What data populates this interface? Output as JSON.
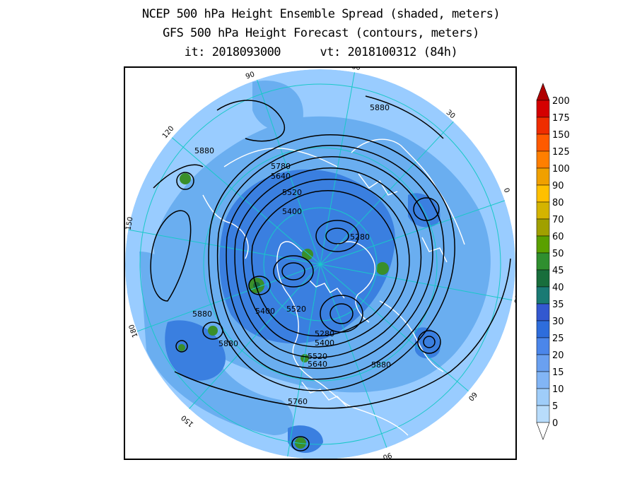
{
  "title": {
    "line1": "NCEP 500 hPa Height Ensemble Spread (shaded, meters)",
    "line2": "GFS 500 hPa Height Forecast (contours, meters)",
    "init_time": "it: 2018093000",
    "valid_time": "vt: 2018100312 (84h)"
  },
  "map": {
    "projection": "north polar stereographic",
    "longitude_labels": [
      "60",
      "30",
      "0",
      "30",
      "60",
      "90",
      "120",
      "150",
      "180",
      "150",
      "120",
      "90"
    ],
    "contour_labels": [
      "5880",
      "5880",
      "5780",
      "5640",
      "5520",
      "5400",
      "5280",
      "5400",
      "5520",
      "5880",
      "5880",
      "5280",
      "5400",
      "5520",
      "5640",
      "5880",
      "5760"
    ],
    "colors": {
      "ocean_shade": "#99ccff",
      "spread_low": "#6aaef0",
      "spread_mid": "#3a7fe0",
      "spread_high": "#2f6fd0",
      "contour": "#000000",
      "coastline": "#ffffff",
      "gridline": "#19c8c8",
      "hotspot_green": "#3a8f2a",
      "hotspot_dark": "#1a6a3a"
    }
  },
  "colorbar": {
    "levels": [
      "200",
      "175",
      "150",
      "125",
      "100",
      "90",
      "80",
      "70",
      "60",
      "50",
      "45",
      "40",
      "35",
      "30",
      "25",
      "20",
      "15",
      "10",
      "5",
      "0"
    ],
    "colors": [
      "#b00000",
      "#d40000",
      "#ef2d00",
      "#ff5a00",
      "#ff7f00",
      "#f0a000",
      "#ffc000",
      "#d4b400",
      "#a0a000",
      "#5aa000",
      "#2f8f2f",
      "#186e3c",
      "#1a7a74",
      "#3358d0",
      "#2e6ddc",
      "#4b86ea",
      "#6aa0f0",
      "#82b5f5",
      "#9fcdf9",
      "#b8dcfb"
    ]
  }
}
